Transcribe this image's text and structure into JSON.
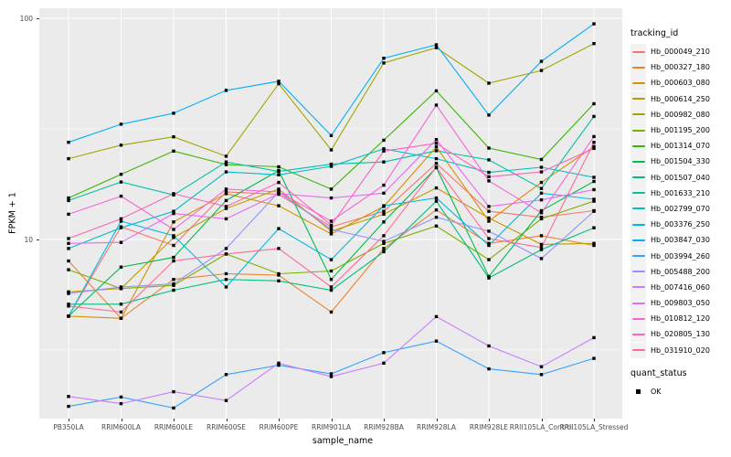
{
  "figure": {
    "background": "#FFFFFF",
    "panel_background": "#EBEBEB",
    "grid_color": "#FFFFFF",
    "axis_text_color": "#4D4D4D",
    "axis_title_color": "#000000",
    "point_color": "#000000"
  },
  "chart_data": {
    "type": "line",
    "title": "",
    "xlabel": "sample_name",
    "ylabel": "FPKM + 1",
    "y_scale": "log10",
    "ylim": [
      1.55,
      111
    ],
    "y_ticks": [
      {
        "value": 100,
        "label": "100"
      },
      {
        "value": 10,
        "label": "10"
      }
    ],
    "y_minor_breaks": [
      31.62,
      3.162
    ],
    "grid": true,
    "legend_position": "right",
    "point_shape": "filled-square",
    "categories": [
      "PB350LA",
      "RRIM600LA",
      "RRIM600LE",
      "RRIM600SE",
      "RRIM600PE",
      "RRIM901LA",
      "RRIM928BA",
      "RRIM928LA",
      "RRIM928LE",
      "RRII105LA_Control",
      "RRII105LA_Stressed"
    ],
    "series": [
      {
        "name": "Hb_000049_210",
        "color": "#F8766D",
        "values": [
          4.5,
          11.4,
          9.4,
          16.4,
          16.0,
          11.4,
          13.4,
          22.1,
          13.4,
          12.6,
          13.5
        ]
      },
      {
        "name": "Hb_000327_180",
        "color": "#EA8331",
        "values": [
          8.0,
          4.4,
          6.6,
          7.0,
          6.9,
          4.7,
          9.1,
          13.6,
          9.6,
          10.4,
          9.4
        ]
      },
      {
        "name": "Hb_000603_080",
        "color": "#D89000",
        "values": [
          4.5,
          4.4,
          12.0,
          16.1,
          14.2,
          10.6,
          14.1,
          26.2,
          12.1,
          18.1,
          26.3
        ]
      },
      {
        "name": "Hb_000614_250",
        "color": "#C09B00",
        "values": [
          5.8,
          6.0,
          10.2,
          13.8,
          16.9,
          10.9,
          13.0,
          17.1,
          12.5,
          9.5,
          9.6
        ]
      },
      {
        "name": "Hb_000982_080",
        "color": "#A3A500",
        "values": [
          23.2,
          26.7,
          29.1,
          23.8,
          50.6,
          25.4,
          62.8,
          73.6,
          50.9,
          58.1,
          76.8
        ]
      },
      {
        "name": "Hb_001195_200",
        "color": "#7CAE00",
        "values": [
          7.3,
          6.0,
          6.2,
          8.6,
          7.0,
          7.2,
          9.6,
          11.5,
          8.1,
          12.4,
          14.9
        ]
      },
      {
        "name": "Hb_001314_070",
        "color": "#39B600",
        "values": [
          15.4,
          19.7,
          25.1,
          21.8,
          21.3,
          16.9,
          28.1,
          47.0,
          25.9,
          23.0,
          41.1
        ]
      },
      {
        "name": "Hb_001504_330",
        "color": "#00BB4E",
        "values": [
          4.5,
          7.5,
          8.3,
          15.0,
          20.5,
          6.6,
          12.0,
          21.1,
          6.8,
          13.5,
          18.3
        ]
      },
      {
        "name": "Hb_001507_040",
        "color": "#00BF7D",
        "values": [
          5.1,
          5.1,
          5.9,
          6.6,
          6.5,
          5.9,
          8.8,
          14.9,
          6.7,
          9.0,
          11.3
        ]
      },
      {
        "name": "Hb_001633_210",
        "color": "#00C1A3",
        "values": [
          15.0,
          18.2,
          15.9,
          22.4,
          20.3,
          21.9,
          22.4,
          25.2,
          22.9,
          17.0,
          36.0
        ]
      },
      {
        "name": "Hb_002799_070",
        "color": "#00BFC4",
        "values": [
          9.1,
          11.3,
          13.4,
          20.2,
          19.6,
          21.4,
          25.7,
          23.2,
          20.1,
          21.2,
          19.1
        ]
      },
      {
        "name": "Hb_003376_250",
        "color": "#00BAE0",
        "values": [
          4.5,
          12.1,
          10.4,
          6.1,
          11.2,
          8.1,
          14.2,
          15.4,
          9.4,
          16.2,
          15.2
        ]
      },
      {
        "name": "Hb_003847_030",
        "color": "#00B0F6",
        "values": [
          27.5,
          33.2,
          37.2,
          47.2,
          51.9,
          29.5,
          66.0,
          75.9,
          36.5,
          63.9,
          94.4
        ]
      },
      {
        "name": "Hb_003994_260",
        "color": "#35A2FF",
        "values": [
          1.76,
          1.94,
          1.73,
          2.45,
          2.7,
          2.47,
          3.08,
          3.47,
          2.6,
          2.45,
          2.9
        ]
      },
      {
        "name": "Hb_005488_200",
        "color": "#9590FF",
        "values": [
          5.7,
          6.1,
          6.3,
          9.1,
          16.4,
          11.1,
          9.8,
          12.6,
          10.9,
          8.2,
          13.4
        ]
      },
      {
        "name": "Hb_007416_060",
        "color": "#C77CFF",
        "values": [
          1.95,
          1.81,
          2.05,
          1.87,
          2.76,
          2.4,
          2.76,
          4.48,
          3.3,
          2.66,
          3.6
        ]
      },
      {
        "name": "Hb_009803_050",
        "color": "#E76BF3",
        "values": [
          9.6,
          9.7,
          13.1,
          12.4,
          16.1,
          15.4,
          16.2,
          28.3,
          14.1,
          15.1,
          16.8
        ]
      },
      {
        "name": "Hb_010812_120",
        "color": "#FA62DB",
        "values": [
          13.0,
          15.7,
          11.1,
          16.9,
          16.4,
          12.1,
          17.6,
          40.5,
          18.4,
          13.2,
          29.2
        ]
      },
      {
        "name": "Hb_020805_130",
        "color": "#FF62BC",
        "values": [
          10.1,
          12.4,
          16.1,
          14.1,
          18.1,
          11.6,
          25.1,
          27.2,
          19.2,
          20.2,
          25.8
        ]
      },
      {
        "name": "Hb_031910_020",
        "color": "#FF6A98",
        "values": [
          5.0,
          4.7,
          8.0,
          8.6,
          9.1,
          6.1,
          10.4,
          21.2,
          10.1,
          9.2,
          27.5
        ]
      }
    ],
    "legend": {
      "tracking_title": "tracking_id",
      "quant_title": "quant_status",
      "quant_items": [
        {
          "label": "OK",
          "color": "#000000",
          "shape": "square"
        }
      ]
    }
  }
}
